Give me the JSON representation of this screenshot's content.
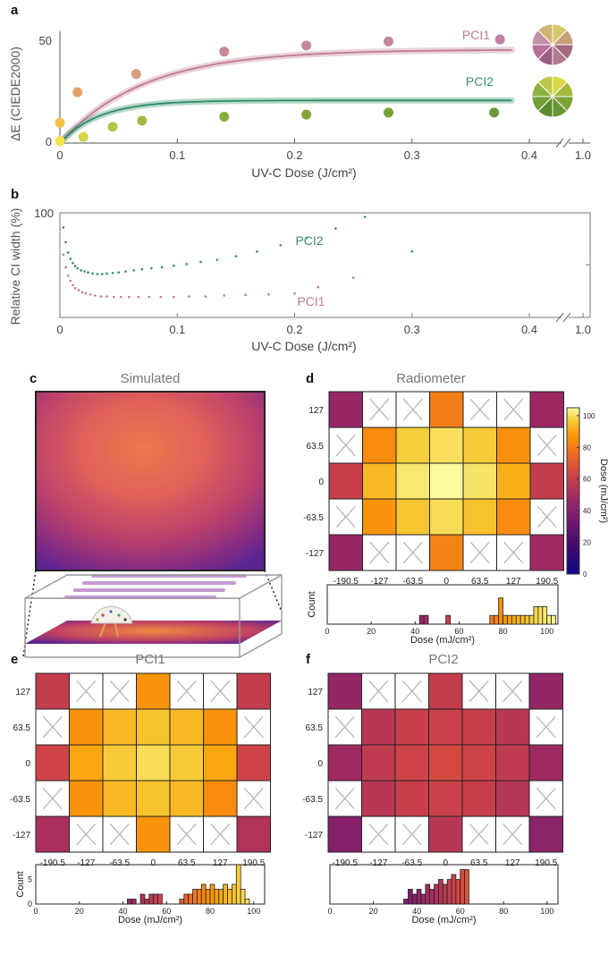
{
  "figure": {
    "panel_labels": [
      "a",
      "b",
      "c",
      "d",
      "e",
      "f"
    ],
    "colors": {
      "pci1": "#c07a94",
      "pci2": "#2f8d66",
      "axis": "#555555",
      "tick_text": "#444444",
      "cross": "#b0b0b0",
      "label_pci1": "#c07a94",
      "label_pci2": "#3f8f6a"
    },
    "colormap": [
      "#0d0887",
      "#2b0a63",
      "#4a0c6b",
      "#781c6d",
      "#a52c60",
      "#cf4446",
      "#ed6925",
      "#fb9b06",
      "#f7d13d",
      "#fcffa4"
    ],
    "colorbar": {
      "title": "Dose (mJ/cm²)",
      "ticks": [
        0,
        20,
        40,
        60,
        80,
        100
      ],
      "min": 0,
      "max": 105
    }
  },
  "chart_data": [
    {
      "panel": "a",
      "type": "line",
      "ylabel": "ΔE (CIEDE2000)",
      "xlabel": "UV-C Dose (J/cm²)",
      "x_ticks": [
        "0",
        "0.1",
        "0.2",
        "0.3",
        "0.4",
        "1.0"
      ],
      "y_ticks": [
        "0",
        "50"
      ],
      "xlim": [
        0,
        0.4
      ],
      "ylim": [
        0,
        55
      ],
      "axis_break": true,
      "series": [
        {
          "name": "PCI1",
          "color": "#c07a94",
          "fit": {
            "max": 46,
            "rate": 14
          },
          "points": [
            {
              "x": 0.0,
              "y": 10,
              "color": "#f2c24a"
            },
            {
              "x": 0.015,
              "y": 25,
              "color": "#e3a06a"
            },
            {
              "x": 0.065,
              "y": 34,
              "color": "#d99a84"
            },
            {
              "x": 0.14,
              "y": 45,
              "color": "#c88a93"
            },
            {
              "x": 0.21,
              "y": 48,
              "color": "#c4869a"
            },
            {
              "x": 0.28,
              "y": 50,
              "color": "#c4859d"
            },
            {
              "x": 0.375,
              "y": 51,
              "color": "#c37fa6"
            }
          ]
        },
        {
          "name": "PCI2",
          "color": "#2f8d66",
          "fit": {
            "max": 21,
            "rate": 30
          },
          "points": [
            {
              "x": 0.0,
              "y": 1,
              "color": "#f5e14a"
            },
            {
              "x": 0.02,
              "y": 3,
              "color": "#d6d64c"
            },
            {
              "x": 0.045,
              "y": 8,
              "color": "#b4c54a"
            },
            {
              "x": 0.07,
              "y": 11,
              "color": "#9fbc48"
            },
            {
              "x": 0.14,
              "y": 13,
              "color": "#88ab3f"
            },
            {
              "x": 0.21,
              "y": 14,
              "color": "#7fa53c"
            },
            {
              "x": 0.28,
              "y": 15,
              "color": "#75a03a"
            },
            {
              "x": 0.37,
              "y": 15,
              "color": "#6e9938"
            }
          ]
        }
      ],
      "swatches": {
        "pci1": [
          "#d9c76d",
          "#c9a07a",
          "#a36a7c",
          "#b07a8f",
          "#9a5d86",
          "#b8709a",
          "#c391a3",
          "#d0b46f"
        ],
        "pci2": [
          "#d9d84a",
          "#a7b83e",
          "#7ea23a",
          "#6a9534",
          "#5c8a31",
          "#739e38",
          "#8eb13f",
          "#bcc94a"
        ]
      }
    },
    {
      "panel": "b",
      "type": "scatter",
      "ylabel": "Relative CI width (%)",
      "xlabel": "UV-C Dose (J/cm²)",
      "x_ticks": [
        "0",
        "0.1",
        "0.2",
        "0.3",
        "0.4",
        "1.0"
      ],
      "y_ticks": [
        "100"
      ],
      "xlim": [
        0,
        0.4
      ],
      "ylim": [
        0,
        100
      ],
      "axis_break": true,
      "series": [
        {
          "name": "PCI2",
          "color": "#2f8d66",
          "points": [
            [
              0.003,
              86
            ],
            [
              0.005,
              72
            ],
            [
              0.007,
              62
            ],
            [
              0.009,
              56
            ],
            [
              0.011,
              52
            ],
            [
              0.013,
              49
            ],
            [
              0.015,
              47
            ],
            [
              0.018,
              45
            ],
            [
              0.021,
              44
            ],
            [
              0.024,
              43
            ],
            [
              0.028,
              42
            ],
            [
              0.032,
              41.5
            ],
            [
              0.036,
              41.5
            ],
            [
              0.04,
              42
            ],
            [
              0.045,
              42.5
            ],
            [
              0.05,
              43
            ],
            [
              0.056,
              44
            ],
            [
              0.063,
              45
            ],
            [
              0.07,
              46
            ],
            [
              0.078,
              47
            ],
            [
              0.087,
              48
            ],
            [
              0.097,
              49.5
            ],
            [
              0.108,
              51
            ],
            [
              0.12,
              53
            ],
            [
              0.134,
              55
            ],
            [
              0.15,
              58.5
            ],
            [
              0.168,
              63
            ],
            [
              0.188,
              69
            ],
            [
              0.21,
              76
            ],
            [
              0.235,
              85
            ],
            [
              0.26,
              96
            ],
            [
              0.3,
              63
            ]
          ]
        },
        {
          "name": "PCI1",
          "color": "#c07a94",
          "points": [
            [
              0.003,
              60
            ],
            [
              0.005,
              48
            ],
            [
              0.007,
              40
            ],
            [
              0.009,
              35
            ],
            [
              0.011,
              31
            ],
            [
              0.013,
              28
            ],
            [
              0.016,
              26
            ],
            [
              0.019,
              24
            ],
            [
              0.022,
              23
            ],
            [
              0.026,
              22
            ],
            [
              0.03,
              21
            ],
            [
              0.035,
              20
            ],
            [
              0.04,
              20
            ],
            [
              0.046,
              19.5
            ],
            [
              0.052,
              19.5
            ],
            [
              0.059,
              19.5
            ],
            [
              0.067,
              19.5
            ],
            [
              0.076,
              19.5
            ],
            [
              0.086,
              19.5
            ],
            [
              0.097,
              19.5
            ],
            [
              0.11,
              20
            ],
            [
              0.124,
              20
            ],
            [
              0.14,
              21
            ],
            [
              0.158,
              21.5
            ],
            [
              0.178,
              22
            ],
            [
              0.2,
              23
            ],
            [
              0.22,
              29
            ],
            [
              0.25,
              38
            ]
          ]
        }
      ]
    },
    {
      "panel": "c",
      "type": "heatmap",
      "title": "Simulated"
    },
    {
      "panel": "d",
      "type": "heatmap",
      "title": "Radiometer",
      "x_ticks": [
        "-190.5",
        "-127",
        "-63.5",
        "0",
        "63.5",
        "127",
        "190.5"
      ],
      "y_ticks": [
        "127",
        "63.5",
        "0",
        "-63.5",
        "-127"
      ],
      "grid": [
        [
          43,
          null,
          null,
          75,
          null,
          null,
          44
        ],
        [
          null,
          78,
          93,
          97,
          92,
          79,
          null
        ],
        [
          56,
          88,
          99,
          104,
          98,
          86,
          55
        ],
        [
          null,
          80,
          91,
          96,
          90,
          78,
          null
        ],
        [
          43,
          null,
          null,
          76,
          null,
          null,
          45
        ]
      ],
      "histogram": {
        "xlabel": "Dose (mJ/cm²)",
        "ylabel": "Count",
        "x_ticks": [
          0,
          20,
          40,
          60,
          80,
          100
        ],
        "xlim": [
          0,
          105
        ],
        "ylim": [
          0,
          4.5
        ],
        "bin_width": 2,
        "bins": [
          [
            43,
            1
          ],
          [
            45,
            1
          ],
          [
            55,
            1
          ],
          [
            75,
            1
          ],
          [
            77,
            1
          ],
          [
            79,
            3
          ],
          [
            81,
            1
          ],
          [
            83,
            1
          ],
          [
            85,
            1
          ],
          [
            87,
            1
          ],
          [
            89,
            1
          ],
          [
            91,
            1
          ],
          [
            93,
            1
          ],
          [
            95,
            2
          ],
          [
            97,
            2
          ],
          [
            99,
            2
          ],
          [
            101,
            1
          ],
          [
            103,
            1
          ]
        ]
      }
    },
    {
      "panel": "e",
      "type": "heatmap",
      "title": "PCI1",
      "x_ticks": [
        "-190.5",
        "-127",
        "-63.5",
        "0",
        "63.5",
        "127",
        "190.5"
      ],
      "y_ticks": [
        "127",
        "63.5",
        "0",
        "-63.5",
        "-127"
      ],
      "grid": [
        [
          55,
          null,
          null,
          80,
          null,
          null,
          55
        ],
        [
          null,
          80,
          88,
          90,
          88,
          80,
          null
        ],
        [
          58,
          84,
          92,
          96,
          92,
          84,
          58
        ],
        [
          null,
          80,
          88,
          90,
          88,
          78,
          null
        ],
        [
          48,
          null,
          null,
          80,
          null,
          null,
          50
        ]
      ],
      "histogram": {
        "xlabel": "Dose (mJ/cm²)",
        "ylabel": "Count",
        "x_ticks": [
          0,
          20,
          40,
          60,
          80,
          100
        ],
        "xlim": [
          0,
          105
        ],
        "ylim": [
          0,
          8
        ],
        "y_ticks": [
          0,
          5
        ],
        "bin_width": 2,
        "bins": [
          [
            43,
            1
          ],
          [
            45,
            1
          ],
          [
            49,
            2
          ],
          [
            51,
            1
          ],
          [
            53,
            2
          ],
          [
            55,
            2
          ],
          [
            57,
            2
          ],
          [
            67,
            1
          ],
          [
            69,
            2
          ],
          [
            71,
            2
          ],
          [
            73,
            3
          ],
          [
            75,
            3
          ],
          [
            77,
            4
          ],
          [
            79,
            3
          ],
          [
            81,
            4
          ],
          [
            83,
            3
          ],
          [
            85,
            3
          ],
          [
            87,
            4
          ],
          [
            89,
            3
          ],
          [
            91,
            4
          ],
          [
            93,
            8
          ],
          [
            95,
            3
          ],
          [
            97,
            1
          ]
        ]
      }
    },
    {
      "panel": "f",
      "type": "heatmap",
      "title": "PCI2",
      "x_ticks": [
        "-190.5",
        "-127",
        "-63.5",
        "0",
        "63.5",
        "127",
        "190.5"
      ],
      "y_ticks": [
        "127",
        "63.5",
        "0",
        "-63.5",
        "-127"
      ],
      "grid": [
        [
          42,
          null,
          null,
          55,
          null,
          null,
          42
        ],
        [
          null,
          52,
          56,
          57,
          56,
          52,
          null
        ],
        [
          45,
          54,
          58,
          60,
          58,
          54,
          45
        ],
        [
          null,
          52,
          56,
          57,
          56,
          51,
          null
        ],
        [
          38,
          null,
          null,
          52,
          null,
          null,
          40
        ]
      ],
      "histogram": {
        "xlabel": "Dose (mJ/cm²)",
        "ylabel": "",
        "x_ticks": [
          0,
          20,
          40,
          60,
          80,
          100
        ],
        "xlim": [
          0,
          105
        ],
        "ylim": [
          0,
          8
        ],
        "bin_width": 2,
        "bins": [
          [
            35,
            1
          ],
          [
            37,
            3
          ],
          [
            39,
            2
          ],
          [
            41,
            3
          ],
          [
            43,
            2
          ],
          [
            45,
            4
          ],
          [
            47,
            3
          ],
          [
            49,
            4
          ],
          [
            51,
            5
          ],
          [
            53,
            4
          ],
          [
            55,
            5
          ],
          [
            57,
            6
          ],
          [
            59,
            5
          ],
          [
            61,
            7
          ],
          [
            63,
            7
          ]
        ]
      }
    }
  ]
}
